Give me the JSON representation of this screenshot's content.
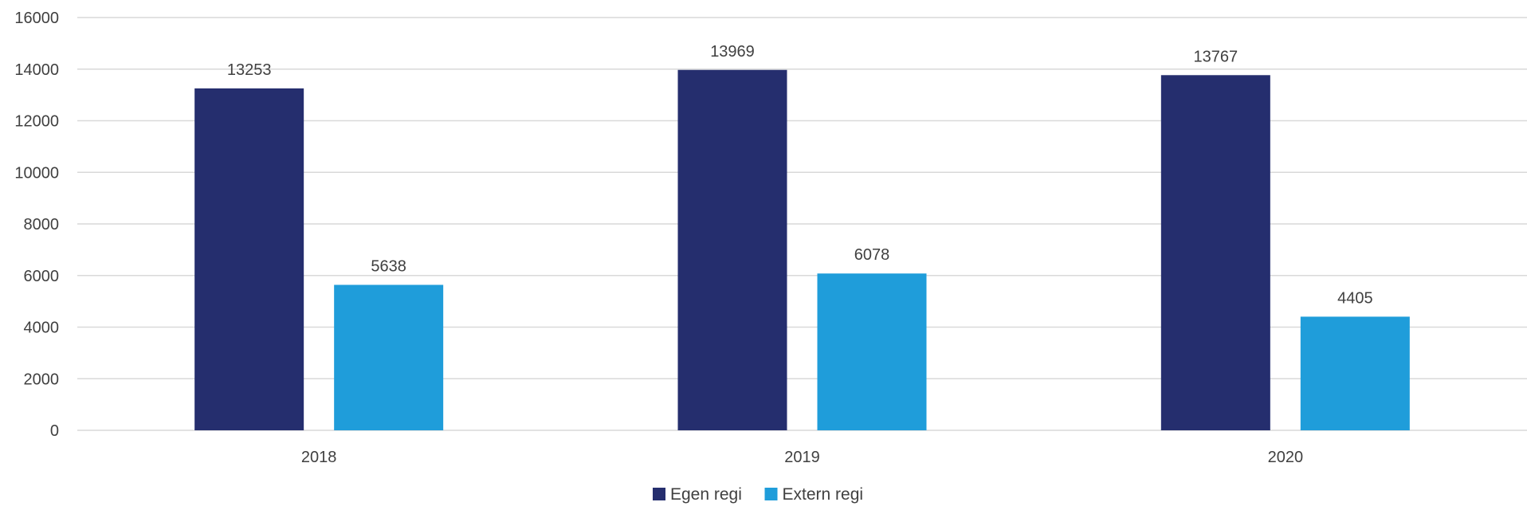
{
  "chart_data": {
    "type": "bar",
    "title": "",
    "xlabel": "",
    "ylabel": "",
    "categories": [
      "2018",
      "2019",
      "2020"
    ],
    "series": [
      {
        "name": "Egen regi",
        "color": "#252E6E",
        "values": [
          13253,
          13969,
          13767
        ]
      },
      {
        "name": "Extern regi",
        "color": "#1F9DDA",
        "values": [
          5638,
          6078,
          4405
        ]
      }
    ],
    "ylim": [
      0,
      16000
    ],
    "yticks": [
      0,
      2000,
      4000,
      6000,
      8000,
      10000,
      12000,
      14000,
      16000
    ],
    "grid": true,
    "legend_position": "bottom-center",
    "data_labels": true
  }
}
